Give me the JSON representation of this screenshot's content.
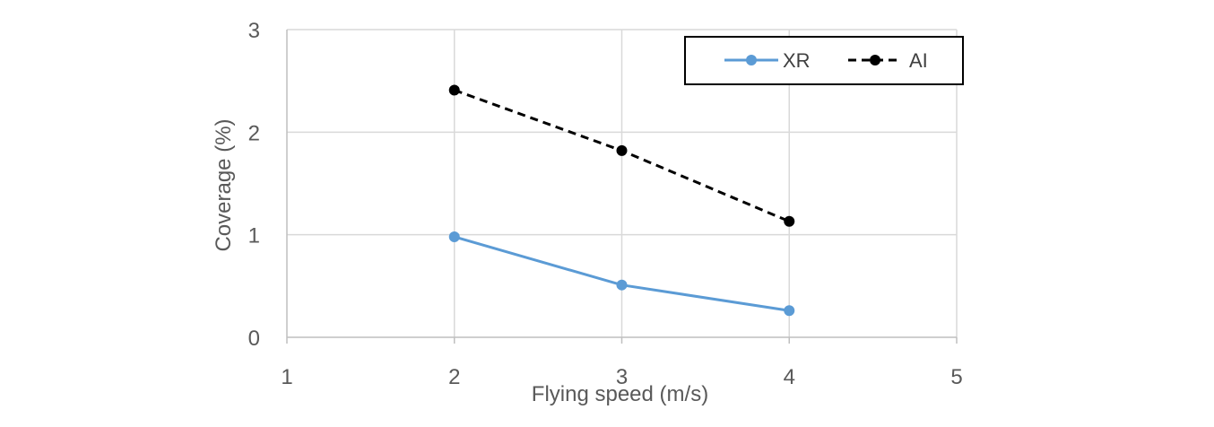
{
  "chart_data": {
    "type": "line",
    "title": "",
    "xlabel": "Flying speed (m/s)",
    "ylabel": "Coverage (%)",
    "xlim": [
      1,
      5
    ],
    "ylim": [
      0,
      3
    ],
    "xticks": [
      1,
      2,
      3,
      4,
      5
    ],
    "yticks": [
      0,
      1,
      2,
      3
    ],
    "grid": true,
    "legend_position": "top-right",
    "x": [
      2,
      3,
      4
    ],
    "series": [
      {
        "name": "XR",
        "values": [
          0.98,
          0.51,
          0.26
        ],
        "color": "#5B9BD5",
        "line_style": "solid",
        "marker": "circle"
      },
      {
        "name": "AI",
        "values": [
          2.41,
          1.82,
          1.13
        ],
        "color": "#000000",
        "line_style": "dashed",
        "marker": "circle"
      }
    ]
  }
}
